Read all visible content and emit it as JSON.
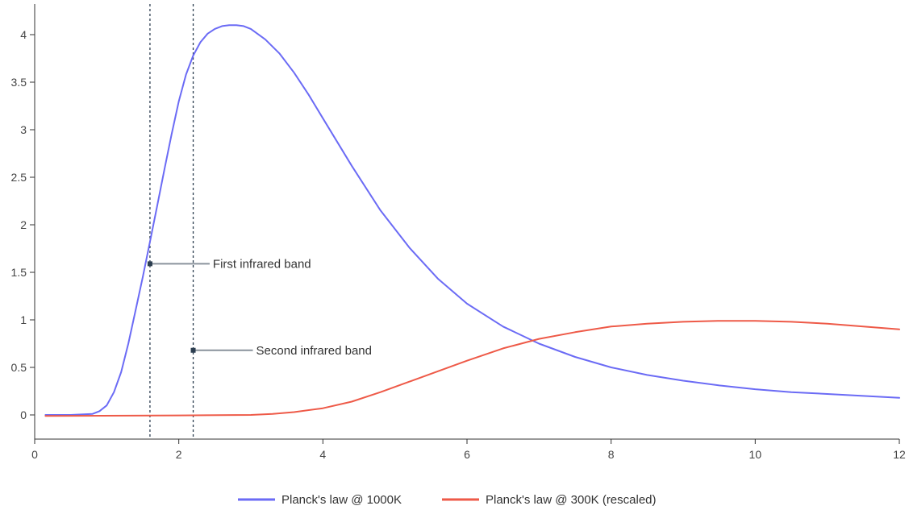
{
  "colors": {
    "series_1000k": "#6b6bf5",
    "series_300k": "#ee5a48",
    "axis": "#333333",
    "guide": "#2c3e50",
    "annotation": "#8a939c"
  },
  "chart_data": {
    "type": "line",
    "title": "",
    "xlabel": "",
    "ylabel": "",
    "xlim": [
      0,
      12
    ],
    "ylim": [
      -0.25,
      4.3
    ],
    "xticks": [
      0,
      2,
      4,
      6,
      8,
      10,
      12
    ],
    "xtick_labels": [
      "0",
      "2",
      "4",
      "6",
      "8",
      "10",
      "12"
    ],
    "yticks": [
      0,
      0.5,
      1,
      1.5,
      2,
      2.5,
      3,
      3.5,
      4
    ],
    "ytick_labels": [
      "0",
      "0.5",
      "1",
      "1.5",
      "2",
      "2.5",
      "3",
      "3.5",
      "4"
    ],
    "grid": false,
    "legend_position": "bottom-center",
    "series": [
      {
        "name": "Planck's law @ 1000K",
        "x": [
          0.15,
          0.5,
          0.8,
          0.9,
          1.0,
          1.1,
          1.2,
          1.3,
          1.4,
          1.5,
          1.6,
          1.7,
          1.8,
          1.9,
          2.0,
          2.1,
          2.2,
          2.3,
          2.4,
          2.5,
          2.6,
          2.7,
          2.8,
          2.9,
          3.0,
          3.2,
          3.4,
          3.6,
          3.8,
          4.0,
          4.4,
          4.8,
          5.2,
          5.6,
          6.0,
          6.5,
          7.0,
          7.5,
          8.0,
          8.5,
          9.0,
          9.5,
          10.0,
          10.5,
          11.0,
          11.5,
          12.0
        ],
        "y": [
          0,
          0,
          0.01,
          0.04,
          0.1,
          0.24,
          0.45,
          0.75,
          1.1,
          1.45,
          1.82,
          2.2,
          2.58,
          2.95,
          3.3,
          3.58,
          3.78,
          3.92,
          4.01,
          4.06,
          4.09,
          4.1,
          4.1,
          4.09,
          4.06,
          3.95,
          3.8,
          3.6,
          3.37,
          3.12,
          2.62,
          2.15,
          1.76,
          1.43,
          1.17,
          0.93,
          0.75,
          0.61,
          0.5,
          0.42,
          0.36,
          0.31,
          0.27,
          0.24,
          0.22,
          0.2,
          0.18
        ]
      },
      {
        "name": "Planck's law @ 300K (rescaled)",
        "x": [
          0.15,
          2.0,
          3.0,
          3.3,
          3.6,
          4.0,
          4.4,
          4.8,
          5.2,
          5.6,
          6.0,
          6.5,
          7.0,
          7.5,
          8.0,
          8.5,
          9.0,
          9.5,
          10.0,
          10.5,
          11.0,
          11.5,
          12.0
        ],
        "y": [
          -0.01,
          -0.005,
          0.0,
          0.01,
          0.03,
          0.07,
          0.14,
          0.24,
          0.35,
          0.46,
          0.57,
          0.7,
          0.8,
          0.87,
          0.93,
          0.96,
          0.98,
          0.99,
          0.99,
          0.98,
          0.96,
          0.93,
          0.9
        ]
      }
    ],
    "vertical_lines": [
      1.6,
      2.2
    ],
    "annotations": [
      {
        "text": "First infrared band",
        "x": 1.6,
        "y": 1.59
      },
      {
        "text": "Second infrared band",
        "x": 2.2,
        "y": 0.68
      }
    ]
  }
}
